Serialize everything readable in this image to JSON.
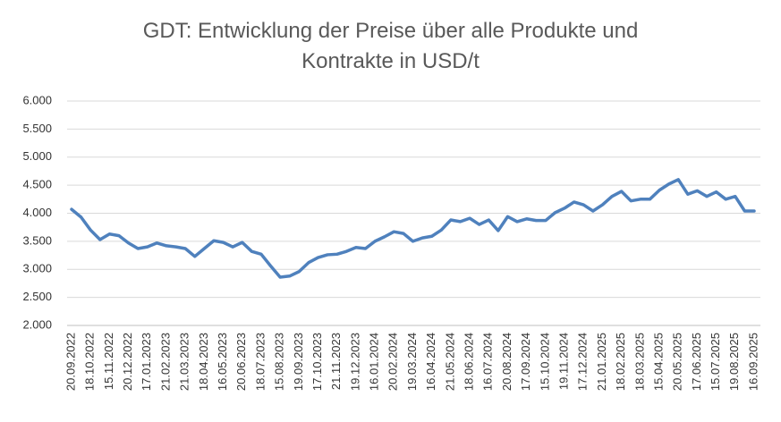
{
  "chart_data": {
    "type": "line",
    "title": "GDT: Entwicklung der Preise über alle Produkte und Kontrakte in USD/t",
    "categories": [
      "20.09.2022",
      null,
      "18.10.2022",
      null,
      "15.11.2022",
      null,
      "20.12.2022",
      null,
      "17.01.2023",
      null,
      "21.02.2023",
      null,
      "21.03.2023",
      null,
      "18.04.2023",
      null,
      "16.05.2023",
      null,
      "20.06.2023",
      null,
      "18.07.2023",
      null,
      "15.08.2023",
      null,
      "19.09.2023",
      null,
      "17.10.2023",
      null,
      "21.11.2023",
      null,
      "19.12.2023",
      null,
      "16.01.2024",
      null,
      "20.02.2024",
      null,
      "19.03.2024",
      null,
      "16.04.2024",
      null,
      "21.05.2024",
      null,
      "18.06.2024",
      null,
      "16.07.2024",
      null,
      "20.08.2024",
      null,
      "17.09.2024",
      null,
      "15.10.2024",
      null,
      "19.11.2024",
      null,
      "17.12.2024",
      null,
      "21.01.2025",
      null,
      "18.02.2025",
      null,
      "18.03.2025",
      null,
      "15.04.2025",
      null,
      "20.05.2025",
      null,
      "17.06.2025",
      null,
      "15.07.2025",
      null,
      "19.08.2025",
      null,
      "16.09.2025"
    ],
    "values": [
      4070,
      3930,
      3700,
      3530,
      3630,
      3600,
      3470,
      3370,
      3400,
      3470,
      3420,
      3400,
      3370,
      3230,
      3370,
      3510,
      3480,
      3400,
      3480,
      3320,
      3270,
      3060,
      2860,
      2880,
      2960,
      3120,
      3210,
      3260,
      3270,
      3320,
      3390,
      3370,
      3500,
      3580,
      3670,
      3640,
      3500,
      3560,
      3590,
      3700,
      3880,
      3850,
      3910,
      3800,
      3880,
      3690,
      3940,
      3850,
      3900,
      3870,
      3870,
      4010,
      4090,
      4200,
      4150,
      4040,
      4150,
      4300,
      4390,
      4220,
      4250,
      4250,
      4410,
      4520,
      4600,
      4340,
      4400,
      4300,
      4380,
      4250,
      4300,
      4040,
      4040
    ],
    "color": "#4f81bd",
    "ylim": [
      2000,
      6000
    ],
    "yticks": [
      {
        "value": 2000,
        "label": "2.000"
      },
      {
        "value": 2500,
        "label": "2.500"
      },
      {
        "value": 3000,
        "label": "3.000"
      },
      {
        "value": 3500,
        "label": "3.500"
      },
      {
        "value": 4000,
        "label": "4.000"
      },
      {
        "value": 4500,
        "label": "4.500"
      },
      {
        "value": 5000,
        "label": "5.000"
      },
      {
        "value": 5500,
        "label": "5.500"
      },
      {
        "value": 6000,
        "label": "6.000"
      }
    ],
    "grid": true
  }
}
